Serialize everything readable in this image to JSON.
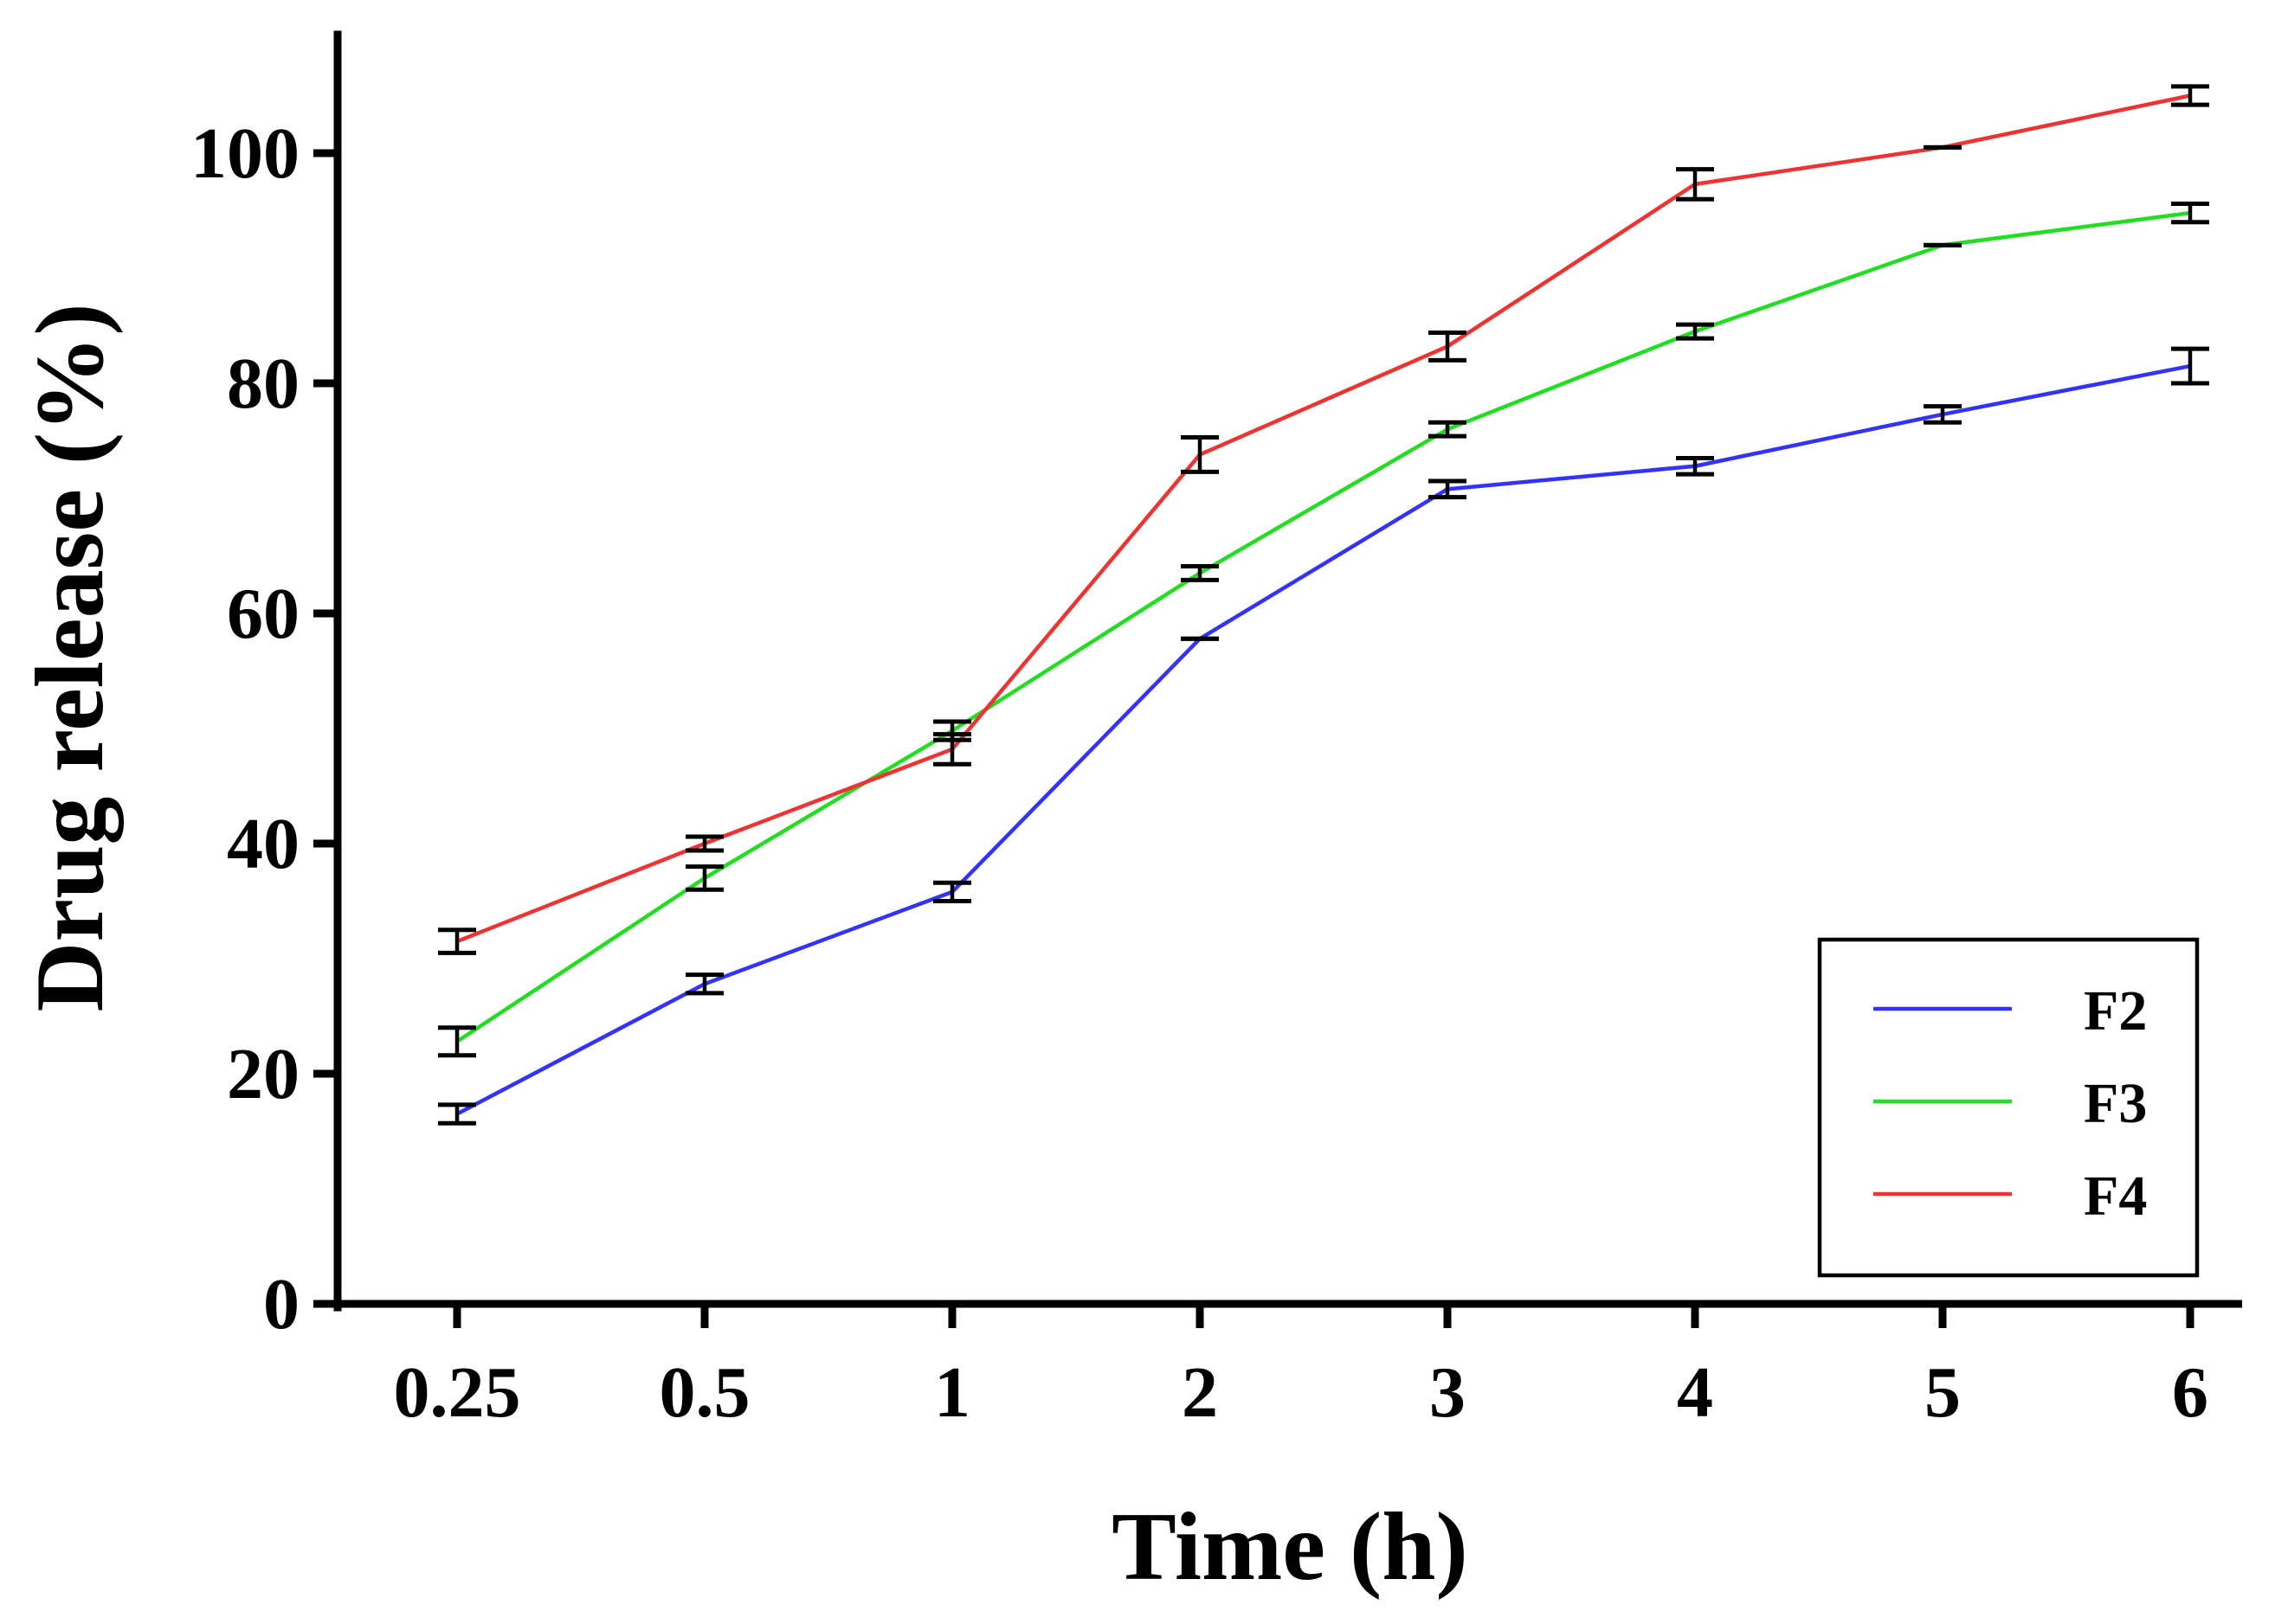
{
  "chart_data": {
    "type": "line",
    "title": "",
    "xlabel": "Time (h)",
    "ylabel": "Drug release (%)",
    "categories": [
      "0.25",
      "0.5",
      "1",
      "2",
      "3",
      "4",
      "5",
      "6"
    ],
    "yticks": [
      "0",
      "20",
      "40",
      "60",
      "80",
      "100"
    ],
    "ylim": [
      0,
      110
    ],
    "grid": false,
    "legend_position": "bottom-right",
    "error_bars": true,
    "series": [
      {
        "name": "F2",
        "color": "#3333ff",
        "values": [
          16.5,
          27.8,
          35.8,
          57.8,
          70.8,
          72.8,
          77.3,
          81.5
        ],
        "errors": [
          0.8,
          0.8,
          0.8,
          0.0,
          0.7,
          0.7,
          0.7,
          1.5
        ]
      },
      {
        "name": "F3",
        "color": "#22dd22",
        "values": [
          22.8,
          37.0,
          49.8,
          63.5,
          76.0,
          84.5,
          92.0,
          94.8
        ],
        "errors": [
          1.2,
          1.0,
          0.8,
          0.6,
          0.6,
          0.6,
          0.0,
          0.8
        ]
      },
      {
        "name": "F4",
        "color": "#ee3333",
        "values": [
          31.5,
          40.0,
          48.2,
          73.8,
          83.2,
          97.3,
          100.5,
          105.0
        ],
        "errors": [
          1.0,
          0.6,
          1.3,
          1.5,
          1.2,
          1.3,
          0.0,
          0.8
        ]
      }
    ]
  }
}
